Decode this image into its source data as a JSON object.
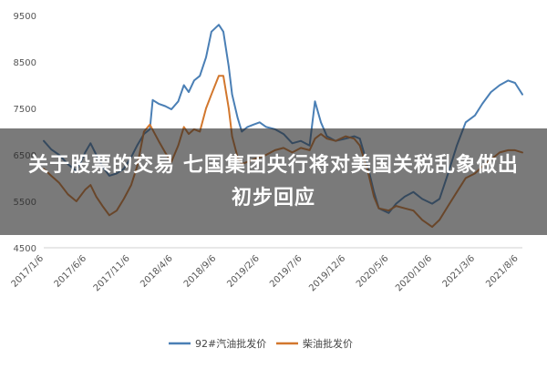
{
  "overlay": {
    "title": "关于股票的交易 七国集团央行将对美国关税乱象做出初步回应"
  },
  "chart_data": {
    "type": "line",
    "title": "",
    "xlabel": "",
    "ylabel": "",
    "ylim": [
      4500,
      9500
    ],
    "yticks": [
      "9500",
      "8500",
      "7500",
      "6500",
      "5500",
      "4500"
    ],
    "xlim": [
      "2017-01-06",
      "2021-08-20"
    ],
    "xticks": [
      {
        "date": "2017-01-06",
        "label": "2017/1/6"
      },
      {
        "date": "2017-06-06",
        "label": "2017/6/6"
      },
      {
        "date": "2017-11-06",
        "label": "2017/11/6"
      },
      {
        "date": "2018-04-06",
        "label": "2018/4/6"
      },
      {
        "date": "2018-09-06",
        "label": "2018/9/6"
      },
      {
        "date": "2019-02-06",
        "label": "2019/2/6"
      },
      {
        "date": "2019-07-06",
        "label": "2019/7/6"
      },
      {
        "date": "2019-12-06",
        "label": "2019/12/6"
      },
      {
        "date": "2020-05-06",
        "label": "2020/5/6"
      },
      {
        "date": "2020-10-06",
        "label": "2020/10/6"
      },
      {
        "date": "2021-03-06",
        "label": "2021/3/6"
      },
      {
        "date": "2021-08-06",
        "label": "2021/8/6"
      }
    ],
    "legend_position": "bottom",
    "grid": false,
    "series": [
      {
        "name": "92#汽油批发价",
        "color": "#4a7fb5",
        "points": [
          [
            "2017-01-06",
            6800
          ],
          [
            "2017-02-01",
            6620
          ],
          [
            "2017-03-01",
            6500
          ],
          [
            "2017-04-01",
            6300
          ],
          [
            "2017-05-01",
            6150
          ],
          [
            "2017-06-01",
            6550
          ],
          [
            "2017-06-20",
            6750
          ],
          [
            "2017-07-10",
            6500
          ],
          [
            "2017-08-01",
            6250
          ],
          [
            "2017-08-25",
            6050
          ],
          [
            "2017-09-20",
            6100
          ],
          [
            "2017-10-15",
            6200
          ],
          [
            "2017-11-10",
            6450
          ],
          [
            "2017-12-01",
            6700
          ],
          [
            "2017-12-25",
            6950
          ],
          [
            "2018-01-15",
            7050
          ],
          [
            "2018-01-25",
            7680
          ],
          [
            "2018-02-15",
            7600
          ],
          [
            "2018-03-10",
            7550
          ],
          [
            "2018-04-01",
            7480
          ],
          [
            "2018-04-25",
            7650
          ],
          [
            "2018-05-15",
            8000
          ],
          [
            "2018-06-01",
            7850
          ],
          [
            "2018-06-20",
            8100
          ],
          [
            "2018-07-10",
            8200
          ],
          [
            "2018-08-01",
            8600
          ],
          [
            "2018-08-20",
            9150
          ],
          [
            "2018-09-15",
            9300
          ],
          [
            "2018-10-01",
            9150
          ],
          [
            "2018-10-20",
            8400
          ],
          [
            "2018-11-01",
            7800
          ],
          [
            "2018-11-20",
            7300
          ],
          [
            "2018-12-05",
            7000
          ],
          [
            "2018-12-25",
            7100
          ],
          [
            "2019-01-15",
            7150
          ],
          [
            "2019-02-06",
            7200
          ],
          [
            "2019-03-01",
            7100
          ],
          [
            "2019-04-01",
            7050
          ],
          [
            "2019-05-01",
            6950
          ],
          [
            "2019-06-01",
            6750
          ],
          [
            "2019-07-01",
            6800
          ],
          [
            "2019-08-01",
            6700
          ],
          [
            "2019-08-20",
            7650
          ],
          [
            "2019-09-10",
            7200
          ],
          [
            "2019-10-01",
            6900
          ],
          [
            "2019-11-01",
            6800
          ],
          [
            "2019-12-06",
            6850
          ],
          [
            "2020-01-05",
            6900
          ],
          [
            "2020-01-25",
            6850
          ],
          [
            "2020-02-20",
            6300
          ],
          [
            "2020-03-15",
            5700
          ],
          [
            "2020-04-01",
            5350
          ],
          [
            "2020-05-06",
            5250
          ],
          [
            "2020-06-01",
            5450
          ],
          [
            "2020-07-01",
            5600
          ],
          [
            "2020-08-01",
            5700
          ],
          [
            "2020-09-01",
            5550
          ],
          [
            "2020-10-06",
            5450
          ],
          [
            "2020-11-01",
            5550
          ],
          [
            "2020-12-01",
            6100
          ],
          [
            "2021-01-01",
            6700
          ],
          [
            "2021-02-01",
            7200
          ],
          [
            "2021-03-06",
            7350
          ],
          [
            "2021-04-01",
            7600
          ],
          [
            "2021-05-01",
            7850
          ],
          [
            "2021-06-01",
            8000
          ],
          [
            "2021-07-01",
            8100
          ],
          [
            "2021-07-25",
            8050
          ],
          [
            "2021-08-20",
            7800
          ]
        ]
      },
      {
        "name": "柴油批发价",
        "color": "#d2772d",
        "points": [
          [
            "2017-01-06",
            6200
          ],
          [
            "2017-02-01",
            6050
          ],
          [
            "2017-03-01",
            5900
          ],
          [
            "2017-04-01",
            5650
          ],
          [
            "2017-05-01",
            5500
          ],
          [
            "2017-06-01",
            5750
          ],
          [
            "2017-06-20",
            5850
          ],
          [
            "2017-07-10",
            5600
          ],
          [
            "2017-08-01",
            5400
          ],
          [
            "2017-08-25",
            5200
          ],
          [
            "2017-09-20",
            5300
          ],
          [
            "2017-10-15",
            5550
          ],
          [
            "2017-11-10",
            5850
          ],
          [
            "2017-12-01",
            6250
          ],
          [
            "2017-12-25",
            7000
          ],
          [
            "2018-01-15",
            7150
          ],
          [
            "2018-02-15",
            6800
          ],
          [
            "2018-03-10",
            6550
          ],
          [
            "2018-04-01",
            6350
          ],
          [
            "2018-04-25",
            6700
          ],
          [
            "2018-05-15",
            7100
          ],
          [
            "2018-06-01",
            6950
          ],
          [
            "2018-06-20",
            7050
          ],
          [
            "2018-07-10",
            7000
          ],
          [
            "2018-08-01",
            7500
          ],
          [
            "2018-08-20",
            7800
          ],
          [
            "2018-09-15",
            8200
          ],
          [
            "2018-10-01",
            8200
          ],
          [
            "2018-10-20",
            7500
          ],
          [
            "2018-11-01",
            6900
          ],
          [
            "2018-11-20",
            6450
          ],
          [
            "2018-12-05",
            6300
          ],
          [
            "2018-12-25",
            6350
          ],
          [
            "2019-01-15",
            6400
          ],
          [
            "2019-02-06",
            6450
          ],
          [
            "2019-03-01",
            6500
          ],
          [
            "2019-04-01",
            6600
          ],
          [
            "2019-05-01",
            6650
          ],
          [
            "2019-06-01",
            6550
          ],
          [
            "2019-07-01",
            6650
          ],
          [
            "2019-08-01",
            6600
          ],
          [
            "2019-08-20",
            6850
          ],
          [
            "2019-09-10",
            6950
          ],
          [
            "2019-10-01",
            6850
          ],
          [
            "2019-11-01",
            6800
          ],
          [
            "2019-12-06",
            6900
          ],
          [
            "2020-01-05",
            6850
          ],
          [
            "2020-01-25",
            6700
          ],
          [
            "2020-02-20",
            6200
          ],
          [
            "2020-03-15",
            5600
          ],
          [
            "2020-04-01",
            5350
          ],
          [
            "2020-05-06",
            5300
          ],
          [
            "2020-06-01",
            5400
          ],
          [
            "2020-07-01",
            5350
          ],
          [
            "2020-08-01",
            5300
          ],
          [
            "2020-09-01",
            5100
          ],
          [
            "2020-10-06",
            4950
          ],
          [
            "2020-11-01",
            5100
          ],
          [
            "2020-12-01",
            5400
          ],
          [
            "2021-01-01",
            5700
          ],
          [
            "2021-02-01",
            6000
          ],
          [
            "2021-03-06",
            6100
          ],
          [
            "2021-04-01",
            6250
          ],
          [
            "2021-05-01",
            6400
          ],
          [
            "2021-06-01",
            6550
          ],
          [
            "2021-07-01",
            6600
          ],
          [
            "2021-07-25",
            6600
          ],
          [
            "2021-08-20",
            6550
          ]
        ]
      }
    ]
  }
}
